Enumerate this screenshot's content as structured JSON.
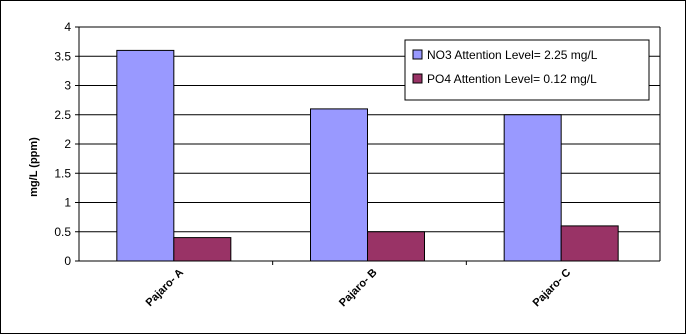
{
  "chart_data": {
    "type": "bar",
    "title": "",
    "xlabel": "",
    "ylabel": "mg/L (ppm)",
    "ylim": [
      0,
      4
    ],
    "yticks": [
      "0",
      "0.5",
      "1",
      "1.5",
      "2",
      "2.5",
      "3",
      "3.5",
      "4"
    ],
    "grid": true,
    "legend_position": "top-right",
    "categories": [
      "Pajaro- A",
      "Pajaro- B",
      "Pajaro- C"
    ],
    "series": [
      {
        "name": "NO3   Attention Level= 2.25 mg/L",
        "values": [
          3.6,
          2.6,
          2.5
        ],
        "color": "#9999ff"
      },
      {
        "name": "PO4   Attention Level= 0.12 mg/L",
        "values": [
          0.4,
          0.5,
          0.6
        ],
        "color": "#993366"
      }
    ]
  }
}
